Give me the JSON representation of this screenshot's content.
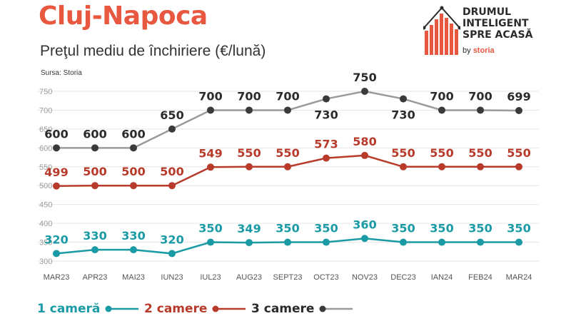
{
  "header": {
    "title": "Cluj-Napoca",
    "subtitle": "Preţul mediu de închiriere (€/lună)",
    "source": "Sursa: Storia"
  },
  "logo": {
    "line1": "DRUMUL",
    "line2": "INTELIGENT",
    "line3": "SPRE ACASĂ",
    "by": "by",
    "brand": "storia"
  },
  "colors": {
    "title": "#e8573f",
    "gray_line": "#9a9a9a",
    "gray_marker": "#3a3a3a",
    "red": "#b83a2a",
    "teal": "#1a9aa4",
    "grid": "#e6e6e6",
    "tick": "#9a9a9a"
  },
  "chart_data": {
    "type": "line",
    "categories": [
      "MAR23",
      "APR23",
      "MAI23",
      "IUN23",
      "IUL23",
      "AUG23",
      "SEPT23",
      "OCT23",
      "NOV23",
      "DEC23",
      "IAN24",
      "FEB24",
      "MAR24"
    ],
    "yticks": [
      300,
      350,
      400,
      450,
      500,
      550,
      600,
      650,
      700,
      750
    ],
    "ylim": [
      300,
      750
    ],
    "grid": true,
    "legend_position": "bottom",
    "series": [
      {
        "name": "1 cameră",
        "color": "#1a9aa4",
        "values": [
          320,
          330,
          330,
          320,
          350,
          349,
          350,
          350,
          360,
          350,
          350,
          350,
          350
        ]
      },
      {
        "name": "2 camere",
        "color": "#b83a2a",
        "values": [
          499,
          500,
          500,
          500,
          549,
          550,
          550,
          573,
          580,
          550,
          550,
          550,
          550
        ]
      },
      {
        "name": "3 camere",
        "color": "#3a3a3a",
        "values": [
          600,
          600,
          600,
          650,
          700,
          700,
          700,
          730,
          750,
          730,
          700,
          700,
          699
        ]
      }
    ]
  }
}
